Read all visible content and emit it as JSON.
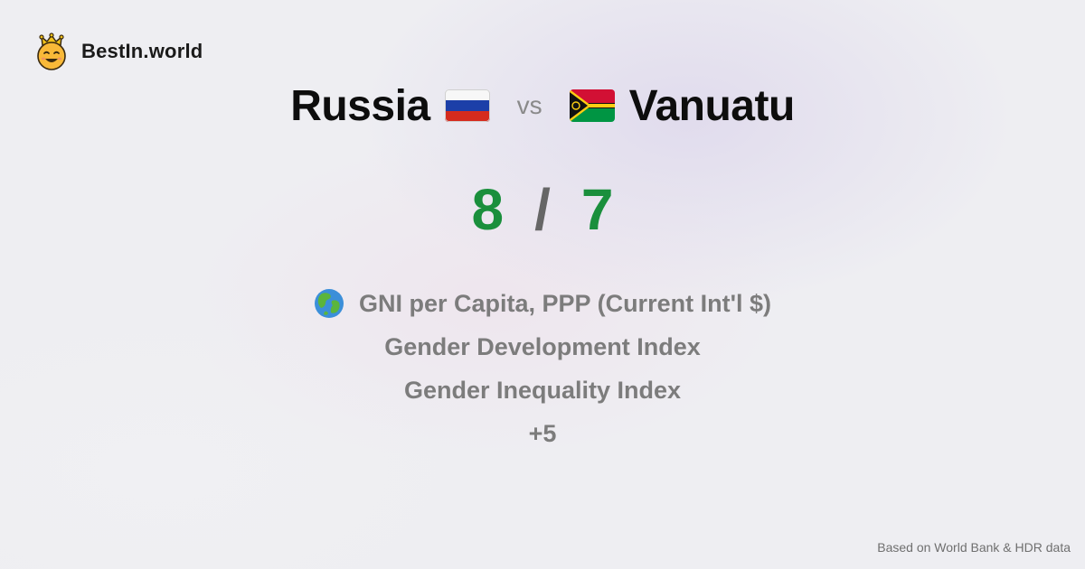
{
  "brand": {
    "name": "BestIn.world",
    "logo_icon": "crowned-smiley-icon"
  },
  "comparison": {
    "left": {
      "name": "Russia",
      "flag_icon": "russia-flag-icon",
      "score": "8"
    },
    "separator": "vs",
    "right": {
      "name": "Vanuatu",
      "flag_icon": "vanuatu-flag-icon",
      "score": "7"
    },
    "score_separator": "/"
  },
  "metrics": [
    {
      "label": "GNI per Capita, PPP (Current Int'l $)",
      "icon": "globe-icon"
    },
    {
      "label": "Gender Development Index"
    },
    {
      "label": "Gender Inequality Index"
    },
    {
      "label": "+5"
    }
  ],
  "footer": {
    "source": "Based on World Bank & HDR data"
  },
  "colors": {
    "score_green": "#1a8f3c",
    "metric_gray": "#7c7c7c",
    "background": "#eeeef2"
  }
}
